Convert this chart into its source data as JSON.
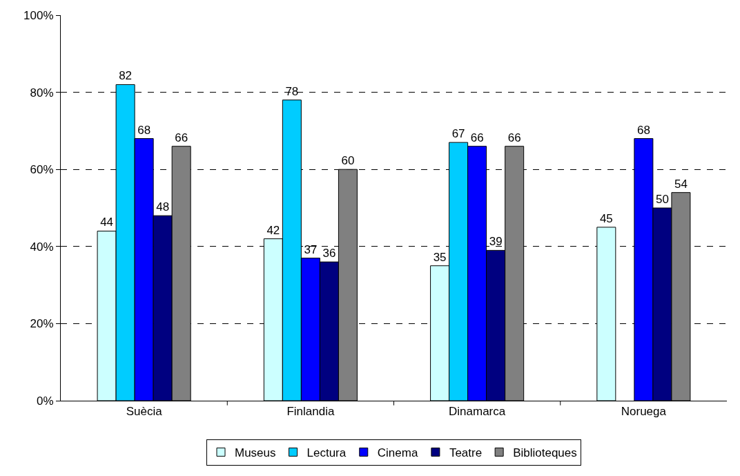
{
  "chart_data": {
    "type": "bar",
    "categories": [
      "Suècia",
      "Finlandia",
      "Dinamarca",
      "Noruega"
    ],
    "series": [
      {
        "name": "Museus",
        "color": "#ccffff",
        "values": [
          44,
          42,
          35,
          45
        ]
      },
      {
        "name": "Lectura",
        "color": "#00ccff",
        "values": [
          82,
          78,
          67,
          null
        ]
      },
      {
        "name": "Cinema",
        "color": "#0000ff",
        "values": [
          68,
          37,
          66,
          68
        ]
      },
      {
        "name": "Teatre",
        "color": "#000080",
        "values": [
          48,
          36,
          39,
          50
        ]
      },
      {
        "name": "Biblioteques",
        "color": "#808080",
        "values": [
          66,
          60,
          66,
          54
        ]
      }
    ],
    "ylim": [
      0,
      100
    ],
    "yticks": [
      {
        "value": 0,
        "label": "0%"
      },
      {
        "value": 20,
        "label": "20%"
      },
      {
        "value": 40,
        "label": "40%"
      },
      {
        "value": 60,
        "label": "60%"
      },
      {
        "value": 80,
        "label": "80%"
      },
      {
        "value": 100,
        "label": "100%"
      }
    ],
    "grid": "y",
    "legend": "bottom",
    "data_labels": true
  }
}
